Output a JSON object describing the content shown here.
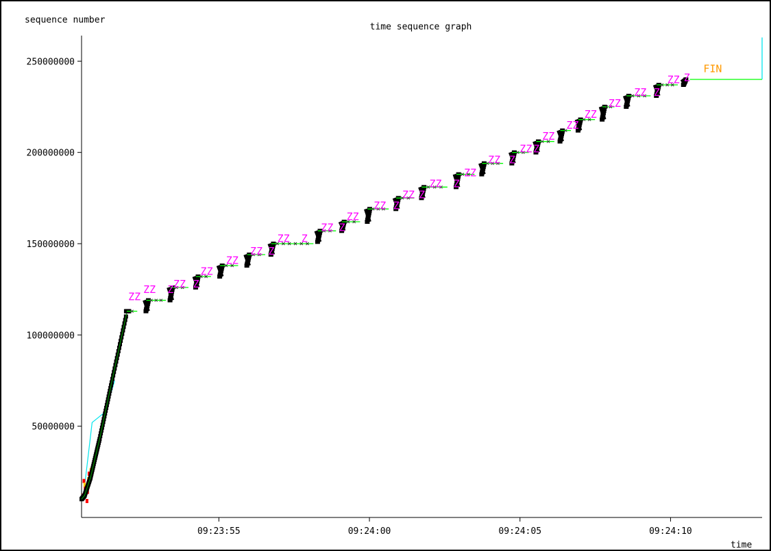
{
  "chart_data": {
    "type": "scatter",
    "title": "time sequence graph",
    "ylabel": "sequence number",
    "xlabel": "time",
    "y_ticks": [
      {
        "label": "50000000",
        "value": 50000000
      },
      {
        "label": "100000000",
        "value": 100000000
      },
      {
        "label": "150000000",
        "value": 150000000
      },
      {
        "label": "200000000",
        "value": 200000000
      },
      {
        "label": "250000000",
        "value": 250000000
      }
    ],
    "x_ticks": [
      {
        "label": "09:23:55",
        "value": 4.56
      },
      {
        "label": "09:24:00",
        "value": 9.56
      },
      {
        "label": "09:24:05",
        "value": 14.56
      },
      {
        "label": "09:24:10",
        "value": 19.56
      }
    ],
    "xlim": [
      0,
      22.6
    ],
    "ylim": [
      0,
      264000000
    ],
    "grid": false,
    "colors": {
      "segments": "#000000",
      "ack": "#00ff00",
      "window": "#00e5ee",
      "zero_window": "#ff00ff",
      "fin": "#ff9900",
      "retransmit": "#ff0000"
    },
    "startup": [
      [
        0.0,
        10000000
      ],
      [
        0.1,
        12000000
      ],
      [
        0.3,
        22000000
      ],
      [
        0.6,
        43000000
      ],
      [
        1.0,
        74000000
      ],
      [
        1.5,
        112000000
      ]
    ],
    "window_line": [
      [
        0.05,
        10000000
      ],
      [
        0.35,
        52000000
      ],
      [
        0.8,
        58000000
      ],
      [
        1.1,
        75000000
      ]
    ],
    "bursts": [
      {
        "t": 1.5,
        "y0": 113000000,
        "y1": 113000000,
        "gap": 0.35
      },
      {
        "t": 2.15,
        "y0": 113000000,
        "y1": 119000000,
        "gap": 0.65
      },
      {
        "t": 2.95,
        "y0": 119000000,
        "y1": 126000000,
        "gap": 0.6
      },
      {
        "t": 3.8,
        "y0": 126000000,
        "y1": 132000000,
        "gap": 0.5
      },
      {
        "t": 4.6,
        "y0": 132000000,
        "y1": 138000000,
        "gap": 0.6
      },
      {
        "t": 5.5,
        "y0": 138000000,
        "y1": 144000000,
        "gap": 0.6
      },
      {
        "t": 6.3,
        "y0": 144000000,
        "y1": 150000000,
        "gap": 1.4
      },
      {
        "t": 7.85,
        "y0": 151000000,
        "y1": 157000000,
        "gap": 0.6
      },
      {
        "t": 8.65,
        "y0": 157000000,
        "y1": 162000000,
        "gap": 0.6
      },
      {
        "t": 9.5,
        "y0": 162000000,
        "y1": 169000000,
        "gap": 0.7
      },
      {
        "t": 10.45,
        "y0": 169000000,
        "y1": 175000000,
        "gap": 0.6
      },
      {
        "t": 11.3,
        "y0": 175000000,
        "y1": 181000000,
        "gap": 0.85
      },
      {
        "t": 12.45,
        "y0": 181000000,
        "y1": 188000000,
        "gap": 0.6
      },
      {
        "t": 13.3,
        "y0": 188000000,
        "y1": 194000000,
        "gap": 0.7
      },
      {
        "t": 14.3,
        "y0": 194000000,
        "y1": 200000000,
        "gap": 0.55
      },
      {
        "t": 15.1,
        "y0": 200000000,
        "y1": 206000000,
        "gap": 0.6
      },
      {
        "t": 15.9,
        "y0": 206000000,
        "y1": 212000000,
        "gap": 0.35
      },
      {
        "t": 16.5,
        "y0": 212000000,
        "y1": 218000000,
        "gap": 0.55
      },
      {
        "t": 17.3,
        "y0": 218000000,
        "y1": 225000000,
        "gap": 0.4
      },
      {
        "t": 18.1,
        "y0": 225000000,
        "y1": 231000000,
        "gap": 0.8
      },
      {
        "t": 19.1,
        "y0": 231000000,
        "y1": 237000000,
        "gap": 0.7
      },
      {
        "t": 20.0,
        "y0": 237000000,
        "y1": 240000000,
        "gap": 0
      }
    ],
    "final_ack": [
      [
        20.2,
        240000000
      ],
      [
        22.6,
        240000000
      ]
    ],
    "final_window": [
      [
        22.6,
        240000000
      ],
      [
        22.6,
        263000000
      ]
    ],
    "zero_window_marks": [
      {
        "label": "ZZ",
        "t": 1.55,
        "y": 119000000
      },
      {
        "label": "ZZ",
        "t": 2.05,
        "y": 123000000
      },
      {
        "label": "Z",
        "t": 2.85,
        "y": 123000000
      },
      {
        "label": "ZZ",
        "t": 3.05,
        "y": 126000000
      },
      {
        "label": "Z",
        "t": 3.7,
        "y": 126000000
      },
      {
        "label": "ZZ",
        "t": 3.95,
        "y": 133000000
      },
      {
        "label": "ZZ",
        "t": 4.8,
        "y": 139000000
      },
      {
        "label": "ZZ",
        "t": 5.6,
        "y": 144000000
      },
      {
        "label": "Z",
        "t": 6.2,
        "y": 144000000
      },
      {
        "label": "ZZ",
        "t": 6.5,
        "y": 151000000
      },
      {
        "label": "Z",
        "t": 7.3,
        "y": 151000000
      },
      {
        "label": "ZZ",
        "t": 7.95,
        "y": 157000000
      },
      {
        "label": "Z",
        "t": 8.55,
        "y": 157000000
      },
      {
        "label": "ZZ",
        "t": 8.8,
        "y": 163000000
      },
      {
        "label": "ZZ",
        "t": 9.7,
        "y": 169000000
      },
      {
        "label": "Z",
        "t": 10.35,
        "y": 169000000
      },
      {
        "label": "ZZ",
        "t": 10.65,
        "y": 175000000
      },
      {
        "label": "Z",
        "t": 11.2,
        "y": 175000000
      },
      {
        "label": "ZZ",
        "t": 11.55,
        "y": 181000000
      },
      {
        "label": "Z",
        "t": 12.35,
        "y": 181000000
      },
      {
        "label": "ZZ",
        "t": 12.7,
        "y": 187000000
      },
      {
        "label": "ZZ",
        "t": 13.5,
        "y": 194000000
      },
      {
        "label": "Z",
        "t": 14.2,
        "y": 194000000
      },
      {
        "label": "ZZ",
        "t": 14.55,
        "y": 200000000
      },
      {
        "label": "Z",
        "t": 15.0,
        "y": 200000000
      },
      {
        "label": "ZZ",
        "t": 15.3,
        "y": 207000000
      },
      {
        "label": "ZZ",
        "t": 16.1,
        "y": 213000000
      },
      {
        "label": "ZZ",
        "t": 16.7,
        "y": 219000000
      },
      {
        "label": "ZZ",
        "t": 17.5,
        "y": 225000000
      },
      {
        "label": "ZZ",
        "t": 18.35,
        "y": 231000000
      },
      {
        "label": "Z",
        "t": 19.0,
        "y": 231000000
      },
      {
        "label": "ZZ",
        "t": 19.45,
        "y": 238000000
      },
      {
        "label": "Z",
        "t": 20.0,
        "y": 239000000
      }
    ],
    "fin_mark": {
      "label": "FIN",
      "t": 20.65,
      "y": 244000000
    }
  }
}
